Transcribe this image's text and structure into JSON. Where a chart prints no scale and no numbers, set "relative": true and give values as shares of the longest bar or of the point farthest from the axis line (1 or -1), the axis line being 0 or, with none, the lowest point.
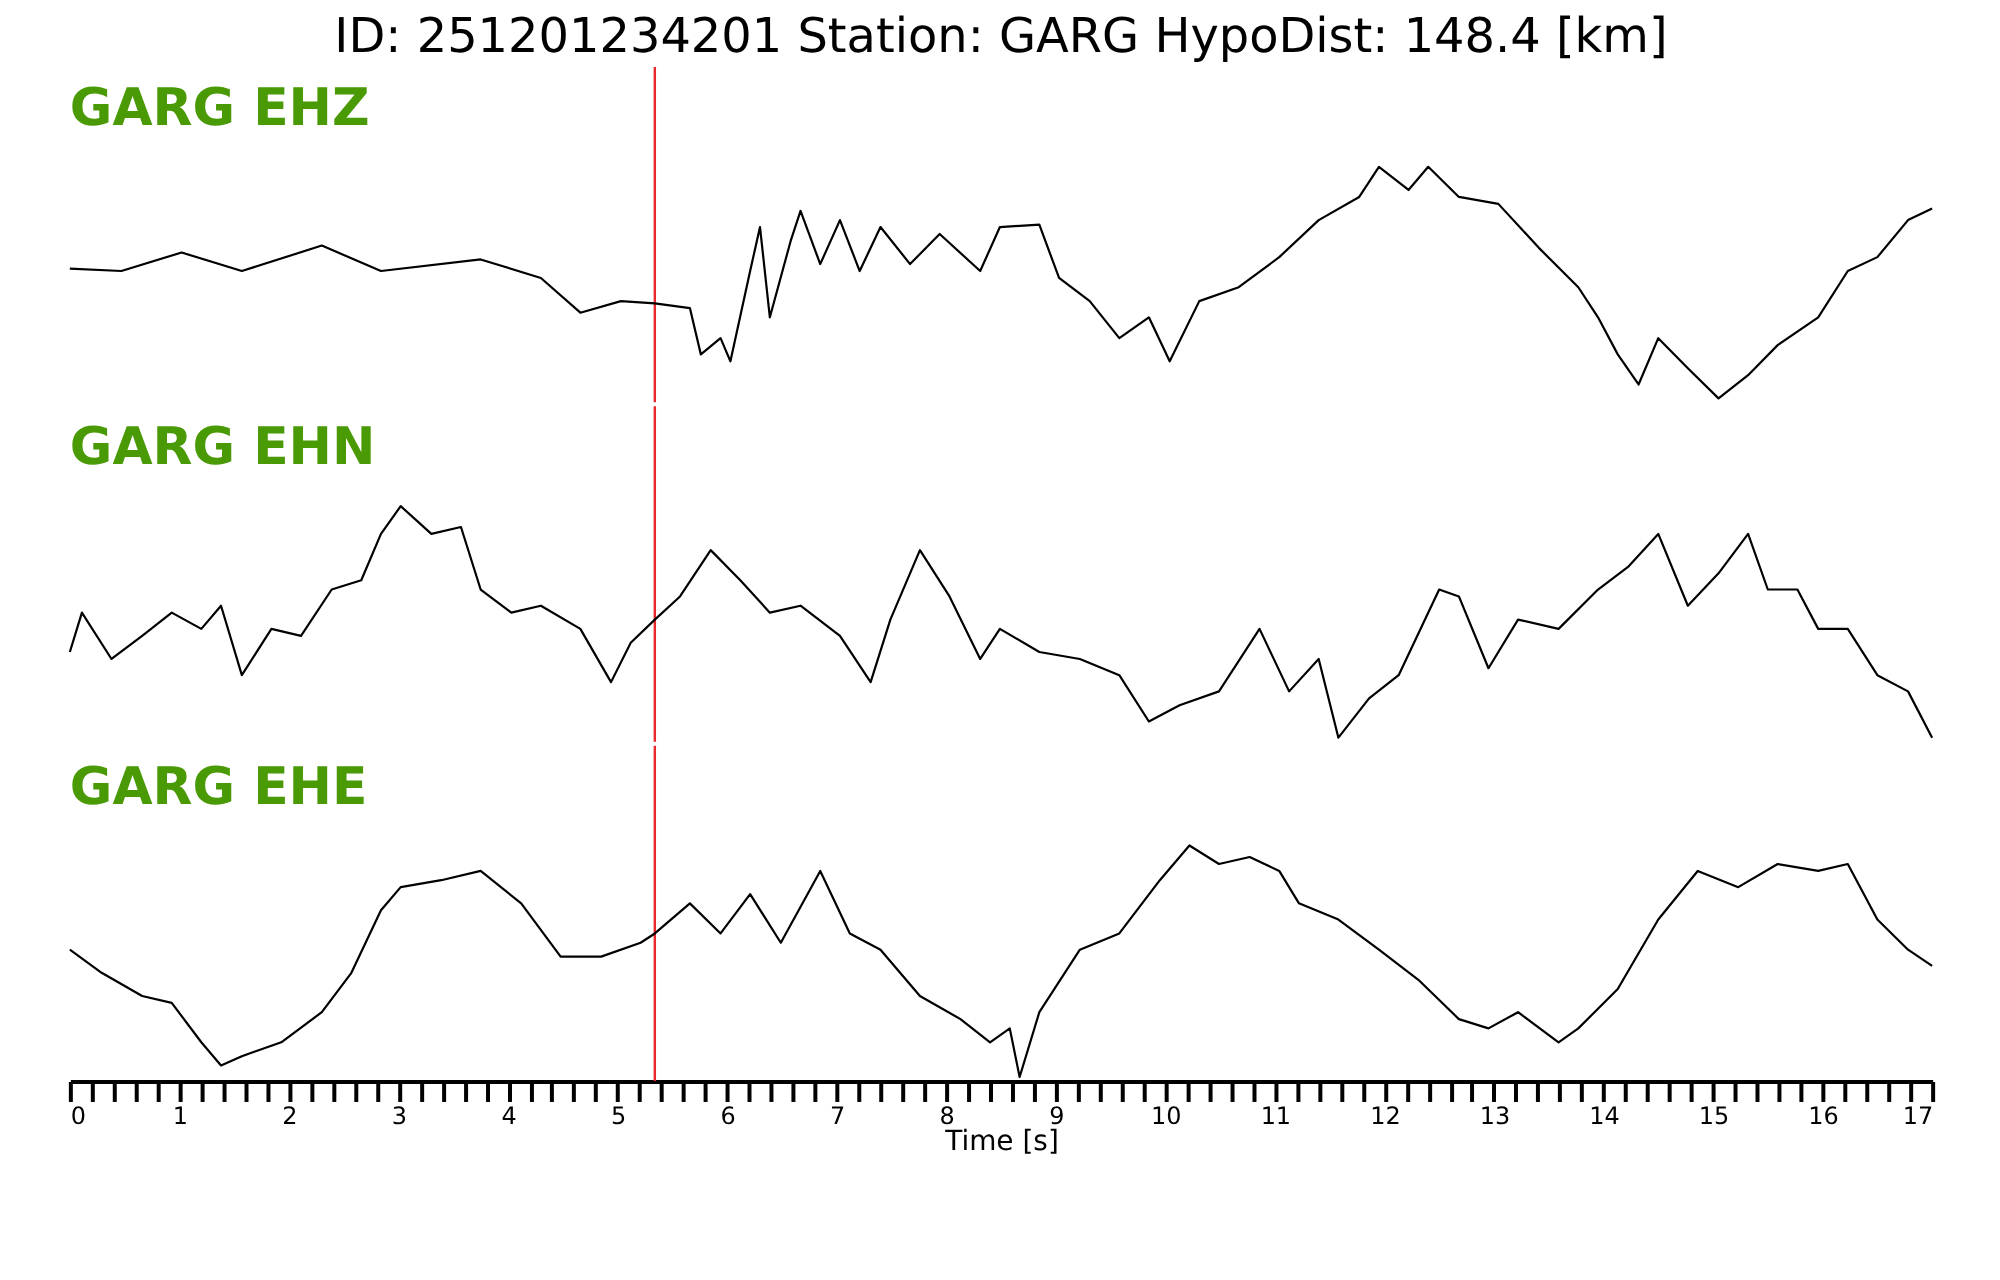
{
  "chart_data": [
    {
      "type": "line",
      "title": "ID: 251201234201   Station: GARG   HypoDist:   148.4 [km]",
      "relative": true,
      "xlim": [
        0,
        17
      ],
      "tick_labels": false,
      "marker": "none",
      "ref_lines": [
        {
          "axis": "x",
          "value": 5.34,
          "color": "#e8282b"
        }
      ],
      "series": [
        {
          "name": "GARG EHZ",
          "color": "#000000",
          "x": [
            0.0,
            0.47,
            1.02,
            1.57,
            2.3,
            2.84,
            3.75,
            4.3,
            4.66,
            5.03,
            5.34,
            5.66,
            5.76,
            5.94,
            6.03,
            6.21,
            6.3,
            6.39,
            6.58,
            6.67,
            6.85,
            7.03,
            7.21,
            7.4,
            7.67,
            7.94,
            8.31,
            8.49,
            8.85,
            9.03,
            9.31,
            9.58,
            9.85,
            10.04,
            10.31,
            10.67,
            11.04,
            11.4,
            11.77,
            11.95,
            12.22,
            12.4,
            12.68,
            13.04,
            13.41,
            13.77,
            13.95,
            14.13,
            14.32,
            14.5,
            14.77,
            15.05,
            15.32,
            15.59,
            15.96,
            16.23,
            16.5,
            16.78,
            17.0
          ],
          "values": [
            0.56,
            0.55,
            0.63,
            0.55,
            0.66,
            0.55,
            0.6,
            0.52,
            0.37,
            0.42,
            0.41,
            0.39,
            0.19,
            0.26,
            0.16,
            0.55,
            0.74,
            0.35,
            0.68,
            0.81,
            0.58,
            0.77,
            0.55,
            0.74,
            0.58,
            0.71,
            0.55,
            0.74,
            0.75,
            0.52,
            0.42,
            0.26,
            0.35,
            0.16,
            0.42,
            0.48,
            0.61,
            0.77,
            0.87,
            1.0,
            0.9,
            1.0,
            0.87,
            0.84,
            0.65,
            0.48,
            0.35,
            0.19,
            0.06,
            0.26,
            0.13,
            0.0,
            0.1,
            0.23,
            0.35,
            0.55,
            0.61,
            0.77,
            0.82
          ]
        }
      ]
    },
    {
      "type": "line",
      "relative": true,
      "xlim": [
        0,
        17
      ],
      "tick_labels": false,
      "marker": "none",
      "ref_lines": [
        {
          "axis": "x",
          "value": 5.34,
          "color": "#e8282b"
        }
      ],
      "series": [
        {
          "name": "GARG EHN",
          "color": "#000000",
          "x": [
            0.0,
            0.11,
            0.38,
            0.66,
            0.93,
            1.2,
            1.38,
            1.57,
            1.84,
            2.11,
            2.39,
            2.66,
            2.84,
            3.02,
            3.3,
            3.57,
            3.75,
            4.03,
            4.3,
            4.66,
            4.94,
            5.12,
            5.34,
            5.57,
            5.85,
            6.12,
            6.39,
            6.67,
            7.03,
            7.31,
            7.49,
            7.76,
            8.03,
            8.31,
            8.49,
            8.85,
            9.22,
            9.58,
            9.85,
            10.13,
            10.49,
            10.86,
            11.13,
            11.4,
            11.58,
            11.86,
            12.13,
            12.5,
            12.68,
            12.95,
            13.22,
            13.59,
            13.95,
            14.23,
            14.5,
            14.77,
            15.05,
            15.32,
            15.5,
            15.77,
            15.96,
            16.23,
            16.5,
            16.78,
            17.0
          ],
          "values": [
            0.37,
            0.54,
            0.34,
            0.44,
            0.54,
            0.47,
            0.57,
            0.27,
            0.47,
            0.44,
            0.64,
            0.68,
            0.88,
            1.0,
            0.88,
            0.91,
            0.64,
            0.54,
            0.57,
            0.47,
            0.24,
            0.41,
            0.51,
            0.61,
            0.81,
            0.68,
            0.54,
            0.57,
            0.44,
            0.24,
            0.51,
            0.81,
            0.61,
            0.34,
            0.47,
            0.37,
            0.34,
            0.27,
            0.07,
            0.14,
            0.2,
            0.47,
            0.2,
            0.34,
            0.0,
            0.17,
            0.27,
            0.64,
            0.61,
            0.3,
            0.51,
            0.47,
            0.64,
            0.74,
            0.88,
            0.57,
            0.71,
            0.88,
            0.64,
            0.64,
            0.47,
            0.47,
            0.27,
            0.2,
            0.0
          ]
        }
      ]
    },
    {
      "type": "line",
      "relative": true,
      "xlim": [
        0,
        17
      ],
      "xlabel": "Time [s]",
      "tick_labels": "x",
      "marker": "none",
      "xticks": [
        0,
        {
          "value": 0.2,
          "label": null
        },
        {
          "value": 0.4,
          "label": null
        },
        {
          "value": 0.6,
          "label": null
        },
        {
          "value": 0.8,
          "label": null
        },
        1,
        {
          "value": 1.2,
          "label": null
        },
        {
          "value": 1.4,
          "label": null
        },
        {
          "value": 1.6,
          "label": null
        },
        {
          "value": 1.8,
          "label": null
        },
        2,
        {
          "value": 2.2,
          "label": null
        },
        {
          "value": 2.4,
          "label": null
        },
        {
          "value": 2.6,
          "label": null
        },
        {
          "value": 2.8,
          "label": null
        },
        3,
        {
          "value": 3.2,
          "label": null
        },
        {
          "value": 3.4,
          "label": null
        },
        {
          "value": 3.6,
          "label": null
        },
        {
          "value": 3.8,
          "label": null
        },
        4,
        {
          "value": 4.2,
          "label": null
        },
        {
          "value": 4.4,
          "label": null
        },
        {
          "value": 4.6,
          "label": null
        },
        {
          "value": 4.8,
          "label": null
        },
        5,
        {
          "value": 5.2,
          "label": null
        },
        {
          "value": 5.4,
          "label": null
        },
        {
          "value": 5.6,
          "label": null
        },
        {
          "value": 5.8,
          "label": null
        },
        6,
        {
          "value": 6.2,
          "label": null
        },
        {
          "value": 6.4,
          "label": null
        },
        {
          "value": 6.6,
          "label": null
        },
        {
          "value": 6.8,
          "label": null
        },
        7,
        {
          "value": 7.2,
          "label": null
        },
        {
          "value": 7.4,
          "label": null
        },
        {
          "value": 7.6,
          "label": null
        },
        {
          "value": 7.8,
          "label": null
        },
        8,
        {
          "value": 8.2,
          "label": null
        },
        {
          "value": 8.4,
          "label": null
        },
        {
          "value": 8.6,
          "label": null
        },
        {
          "value": 8.8,
          "label": null
        },
        9,
        {
          "value": 9.2,
          "label": null
        },
        {
          "value": 9.4,
          "label": null
        },
        {
          "value": 9.6,
          "label": null
        },
        {
          "value": 9.8,
          "label": null
        },
        10,
        {
          "value": 10.2,
          "label": null
        },
        {
          "value": 10.4,
          "label": null
        },
        {
          "value": 10.6,
          "label": null
        },
        {
          "value": 10.8,
          "label": null
        },
        11,
        {
          "value": 11.2,
          "label": null
        },
        {
          "value": 11.4,
          "label": null
        },
        {
          "value": 11.6,
          "label": null
        },
        {
          "value": 11.8,
          "label": null
        },
        12,
        {
          "value": 12.2,
          "label": null
        },
        {
          "value": 12.4,
          "label": null
        },
        {
          "value": 12.6,
          "label": null
        },
        {
          "value": 12.8,
          "label": null
        },
        13,
        {
          "value": 13.2,
          "label": null
        },
        {
          "value": 13.4,
          "label": null
        },
        {
          "value": 13.6,
          "label": null
        },
        {
          "value": 13.8,
          "label": null
        },
        14,
        {
          "value": 14.2,
          "label": null
        },
        {
          "value": 14.4,
          "label": null
        },
        {
          "value": 14.6,
          "label": null
        },
        {
          "value": 14.8,
          "label": null
        },
        15,
        {
          "value": 15.2,
          "label": null
        },
        {
          "value": 15.4,
          "label": null
        },
        {
          "value": 15.6,
          "label": null
        },
        {
          "value": 15.8,
          "label": null
        },
        16,
        {
          "value": 16.2,
          "label": null
        },
        {
          "value": 16.4,
          "label": null
        },
        {
          "value": 16.6,
          "label": null
        },
        {
          "value": 16.8,
          "label": null
        },
        17
      ],
      "ref_lines": [
        {
          "axis": "x",
          "value": 5.34,
          "color": "#e8282b"
        }
      ],
      "series": [
        {
          "name": "GARG EHE",
          "color": "#000000",
          "x": [
            0.0,
            0.29,
            0.66,
            0.93,
            1.2,
            1.38,
            1.57,
            1.93,
            2.3,
            2.57,
            2.84,
            3.02,
            3.39,
            3.75,
            4.12,
            4.48,
            4.85,
            5.21,
            5.34,
            5.66,
            5.94,
            6.21,
            6.49,
            6.85,
            7.12,
            7.4,
            7.76,
            8.13,
            8.4,
            8.58,
            8.67,
            8.85,
            9.22,
            9.58,
            9.95,
            10.22,
            10.49,
            10.77,
            11.04,
            11.22,
            11.58,
            11.95,
            12.31,
            12.68,
            12.95,
            13.22,
            13.59,
            13.77,
            14.13,
            14.5,
            14.86,
            15.23,
            15.59,
            15.96,
            16.23,
            16.5,
            16.78,
            17.0
          ],
          "values": [
            0.55,
            0.45,
            0.35,
            0.32,
            0.15,
            0.05,
            0.09,
            0.15,
            0.28,
            0.45,
            0.72,
            0.82,
            0.85,
            0.89,
            0.75,
            0.52,
            0.52,
            0.58,
            0.62,
            0.75,
            0.62,
            0.79,
            0.58,
            0.89,
            0.62,
            0.55,
            0.35,
            0.25,
            0.15,
            0.21,
            0.0,
            0.28,
            0.55,
            0.62,
            0.85,
            1.0,
            0.92,
            0.95,
            0.89,
            0.75,
            0.68,
            0.55,
            0.42,
            0.25,
            0.21,
            0.28,
            0.15,
            0.21,
            0.38,
            0.68,
            0.89,
            0.82,
            0.92,
            0.89,
            0.92,
            0.68,
            0.55,
            0.48
          ]
        }
      ]
    }
  ]
}
